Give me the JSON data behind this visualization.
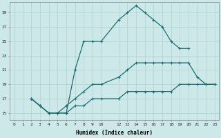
{
  "xlabel": "Humidex (Indice chaleur)",
  "bg_color": "#cde8e8",
  "grid_color": "#b0d0d0",
  "line_color": "#1a6e6e",
  "xlim": [
    -0.5,
    23.5
  ],
  "ylim": [
    14.0,
    30.5
  ],
  "xticks": [
    0,
    1,
    2,
    3,
    4,
    5,
    6,
    7,
    8,
    9,
    10,
    12,
    13,
    14,
    15,
    16,
    17,
    18,
    19,
    20,
    21,
    22,
    23
  ],
  "yticks": [
    15,
    17,
    19,
    21,
    23,
    25,
    27,
    29
  ],
  "line1_solid": {
    "x": [
      2,
      3,
      4,
      5,
      6,
      7,
      8,
      9,
      10,
      12,
      13,
      14,
      15,
      16,
      17,
      18,
      19,
      20
    ],
    "y": [
      17,
      16,
      15,
      15,
      15,
      21,
      25,
      25,
      25,
      28,
      29,
      30,
      29,
      28,
      27,
      25,
      24,
      24
    ]
  },
  "line2_solid": {
    "x": [
      2,
      3,
      4,
      5,
      6,
      7,
      8,
      9,
      10,
      12,
      13,
      14,
      15,
      16,
      17,
      18,
      19,
      20,
      21,
      22,
      23
    ],
    "y": [
      17,
      16,
      15,
      15,
      16,
      17,
      18,
      19,
      19,
      20,
      21,
      22,
      22,
      22,
      22,
      22,
      22,
      22,
      20,
      19,
      19
    ]
  },
  "line3_solid": {
    "x": [
      2,
      3,
      4,
      5,
      6,
      7,
      8,
      9,
      10,
      12,
      13,
      14,
      15,
      16,
      17,
      18,
      19,
      20,
      21,
      22,
      23
    ],
    "y": [
      17,
      16,
      15,
      15,
      15,
      16,
      16,
      17,
      17,
      17,
      18,
      18,
      18,
      18,
      18,
      18,
      19,
      19,
      19,
      19,
      19
    ]
  }
}
